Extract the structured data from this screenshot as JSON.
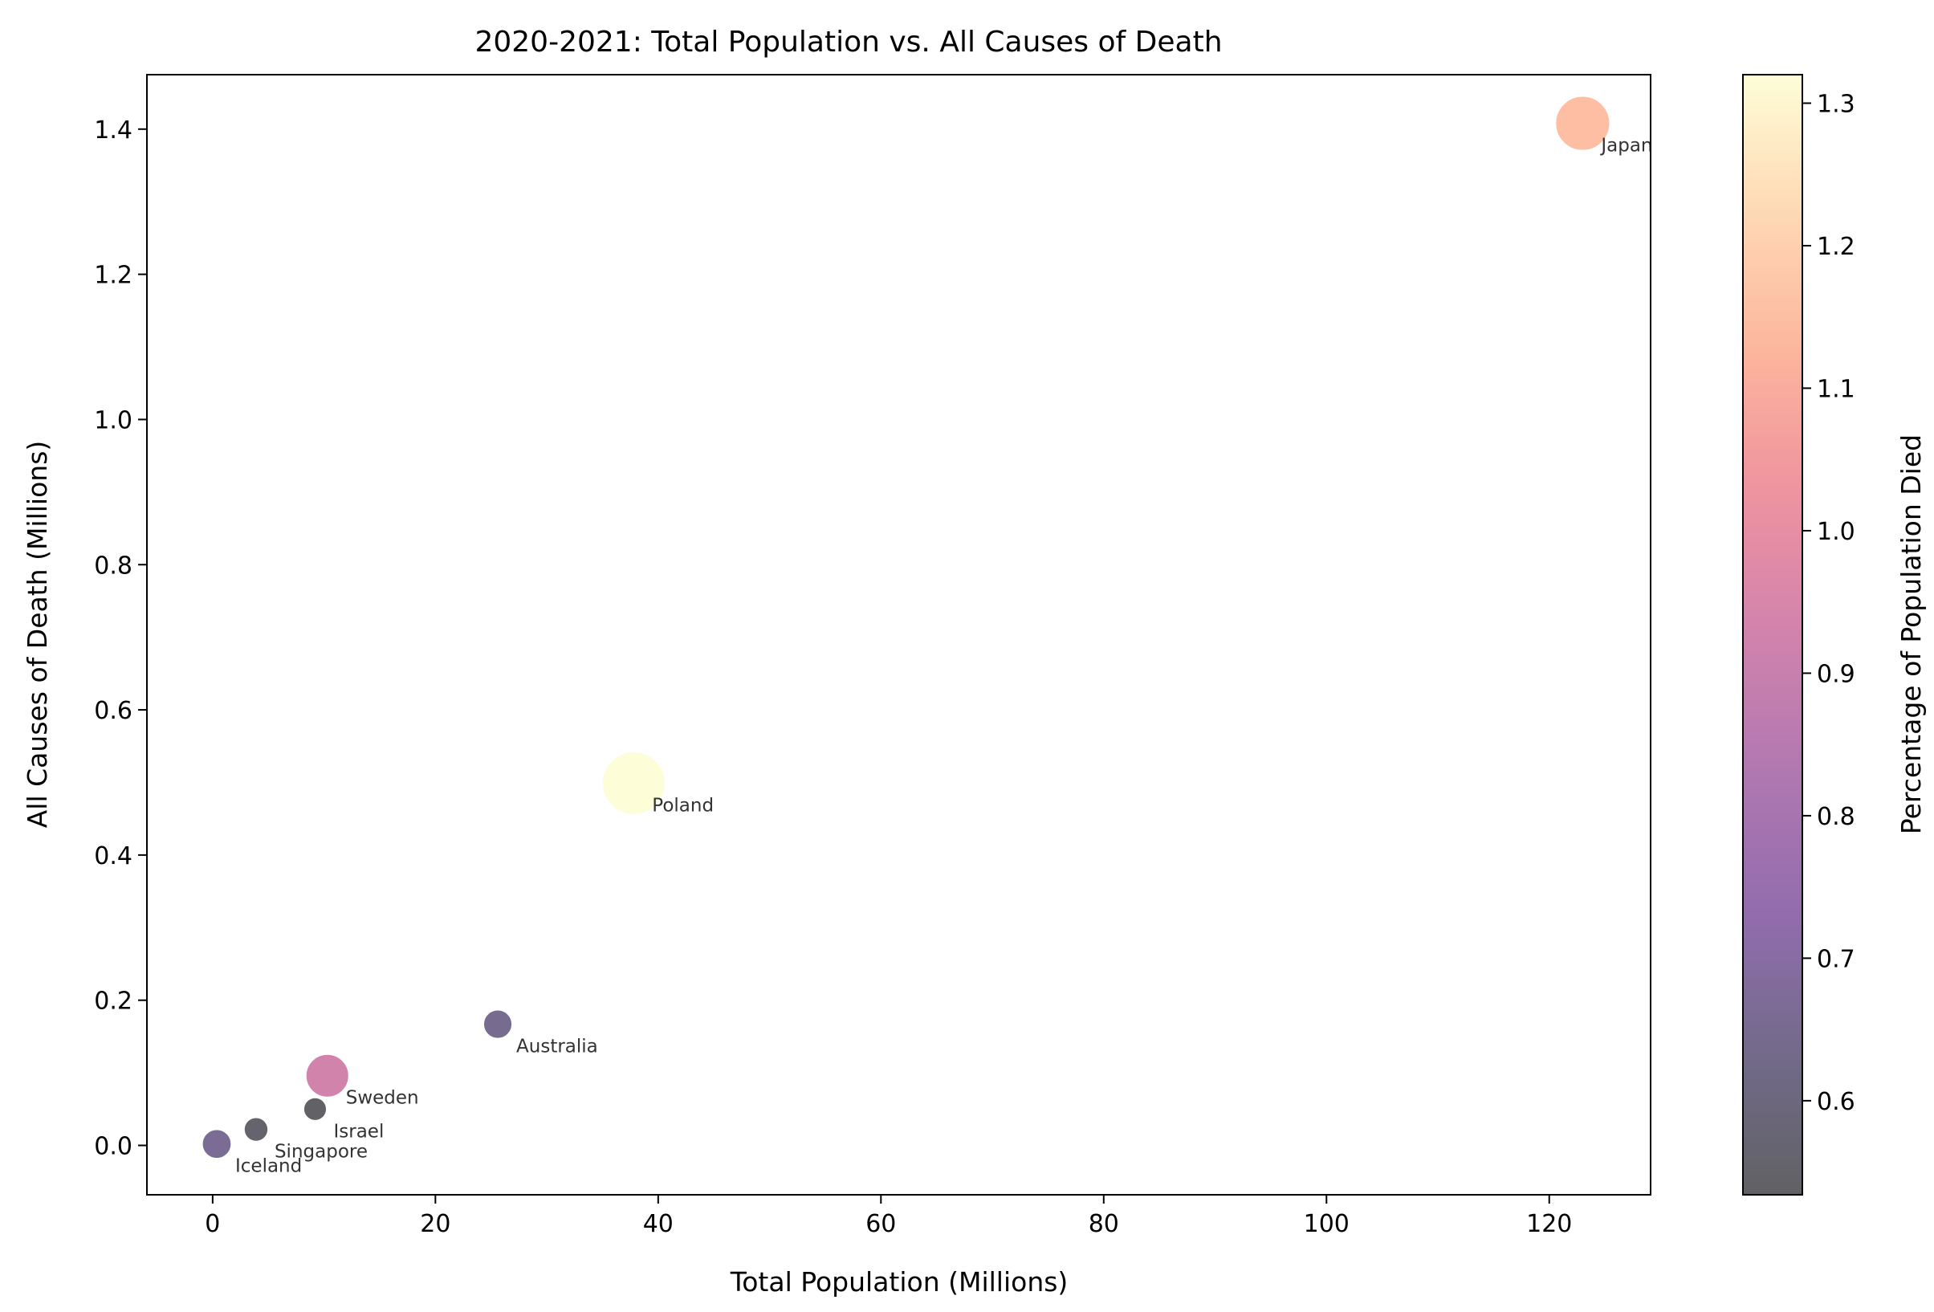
{
  "chart_data": {
    "type": "scatter",
    "title": "2020-2021: Total Population vs. All Causes of Death",
    "xlabel": "Total Population (Millions)",
    "ylabel": "All Causes of Death (Millions)",
    "xlim": [
      -5.9,
      129.1
    ],
    "ylim": [
      -0.068,
      1.475
    ],
    "xticks": [
      0,
      20,
      40,
      60,
      80,
      100,
      120
    ],
    "yticks": [
      0.0,
      0.2,
      0.4,
      0.6,
      0.8,
      1.0,
      1.2,
      1.4
    ],
    "grid": false,
    "colorbar": {
      "label": "Percentage of Population Died",
      "range": [
        0.534,
        1.32
      ],
      "ticks": [
        0.6,
        0.7,
        0.8,
        0.9,
        1.0,
        1.1,
        1.2,
        1.3
      ],
      "colormap": "magma"
    },
    "points": [
      {
        "label": "Iceland",
        "x": 0.37,
        "y": 0.002,
        "pct": 0.66
      },
      {
        "label": "Singapore",
        "x": 3.9,
        "y": 0.022,
        "pct": 0.56
      },
      {
        "label": "Israel",
        "x": 9.2,
        "y": 0.05,
        "pct": 0.54
      },
      {
        "label": "Sweden",
        "x": 10.3,
        "y": 0.096,
        "pct": 0.93
      },
      {
        "label": "Australia",
        "x": 25.6,
        "y": 0.167,
        "pct": 0.65
      },
      {
        "label": "Poland",
        "x": 37.8,
        "y": 0.499,
        "pct": 1.32
      },
      {
        "label": "Japan",
        "x": 123.0,
        "y": 1.408,
        "pct": 1.15
      }
    ]
  }
}
